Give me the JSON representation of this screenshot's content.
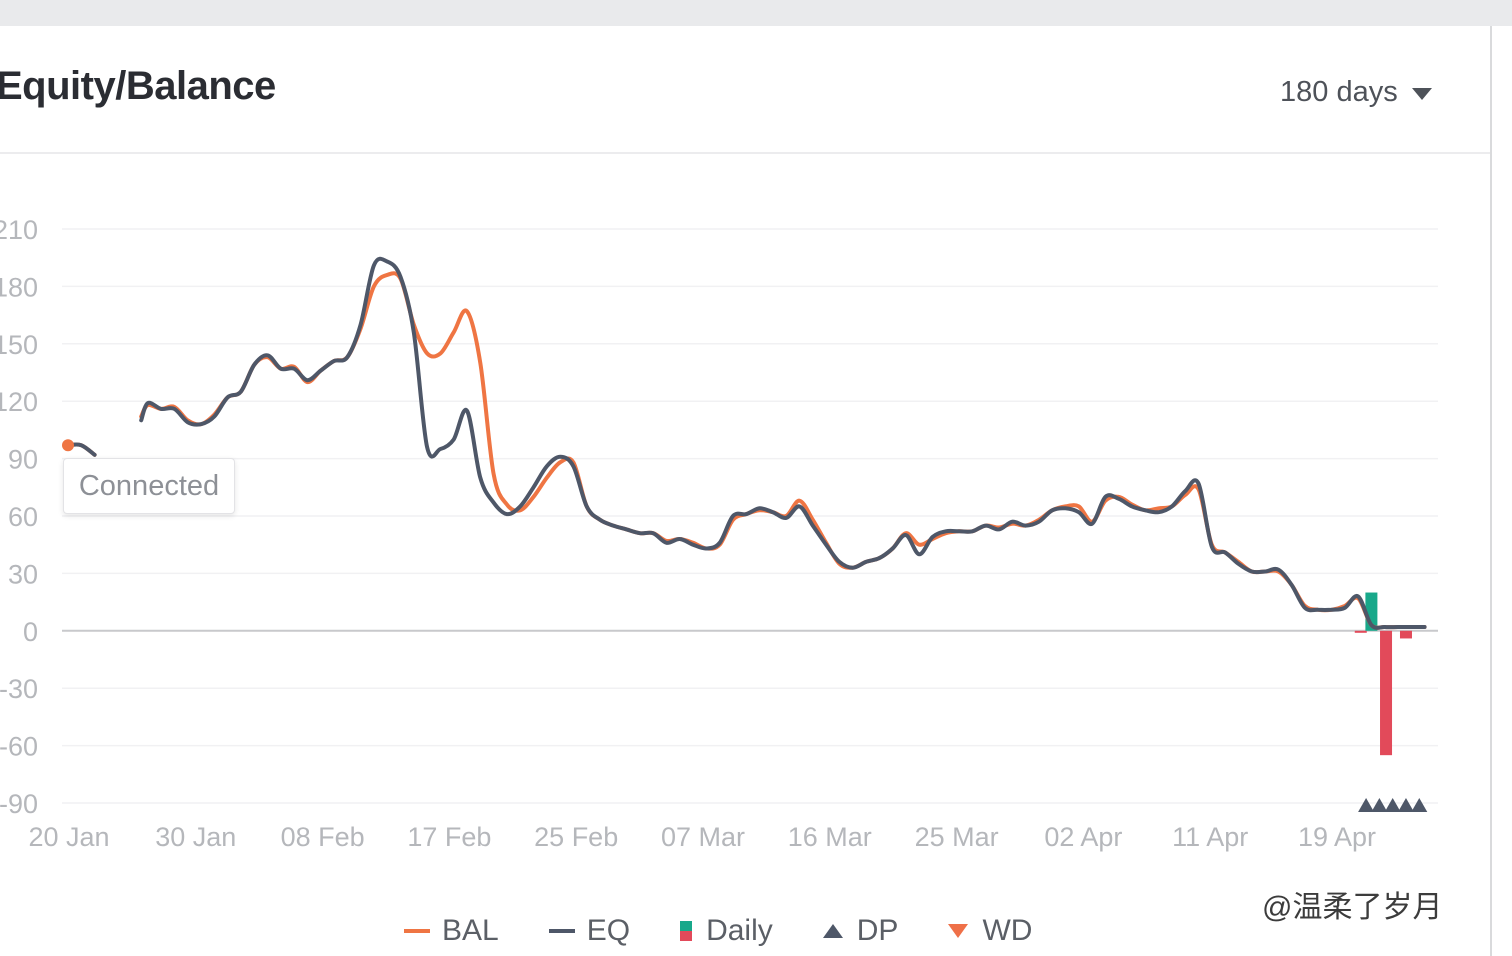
{
  "header": {
    "title": "Equity/Balance",
    "range_label": "180 days"
  },
  "tooltip": "Connected",
  "watermark": "@温柔了岁月",
  "legend": [
    {
      "key": "bal",
      "label": "BAL",
      "color": "#ef7543"
    },
    {
      "key": "eq",
      "label": "EQ",
      "color": "#4e5768"
    },
    {
      "key": "daily",
      "label": "Daily",
      "color_pos": "#18a88a",
      "color_neg": "#e24a5a"
    },
    {
      "key": "dp",
      "label": "DP",
      "color": "#4e5768"
    },
    {
      "key": "wd",
      "label": "WD",
      "color": "#ef7048"
    }
  ],
  "chart_data": {
    "type": "line",
    "title": "Equity/Balance",
    "ylim": [
      -90,
      210
    ],
    "yticks": [
      -90,
      -60,
      -30,
      0,
      30,
      60,
      90,
      120,
      150,
      180,
      210
    ],
    "ytick_labels": [
      "-90",
      "-60",
      "-30",
      "0",
      "30",
      "60",
      "90",
      "120",
      "150",
      "180",
      "210"
    ],
    "xticks": [
      "20 Jan",
      "30 Jan",
      "08 Feb",
      "17 Feb",
      "25 Feb",
      "07 Mar",
      "16 Mar",
      "25 Mar",
      "02 Apr",
      "11 Apr",
      "19 Apr"
    ],
    "grid": true,
    "legend_position": "bottom",
    "series": [
      {
        "name": "BAL",
        "color": "#ef7543",
        "points": [
          [
            0,
            97
          ],
          [
            1,
            97
          ],
          [
            2,
            92
          ],
          [
            3.5,
            null
          ],
          [
            5.2,
            null
          ],
          [
            5.5,
            112
          ],
          [
            6,
            118
          ],
          [
            7,
            116
          ],
          [
            8,
            117
          ],
          [
            9,
            110
          ],
          [
            10,
            108
          ],
          [
            11,
            113
          ],
          [
            12,
            122
          ],
          [
            13,
            125
          ],
          [
            14,
            139
          ],
          [
            15,
            143
          ],
          [
            16,
            137
          ],
          [
            17,
            138
          ],
          [
            18,
            130
          ],
          [
            19,
            136
          ],
          [
            20,
            141
          ],
          [
            21,
            143
          ],
          [
            22,
            158
          ],
          [
            23,
            180
          ],
          [
            24,
            186
          ],
          [
            25,
            184
          ],
          [
            26,
            160
          ],
          [
            27,
            145
          ],
          [
            28,
            145
          ],
          [
            29,
            156
          ],
          [
            30,
            167
          ],
          [
            31,
            140
          ],
          [
            32,
            82
          ],
          [
            33,
            66
          ],
          [
            34,
            63
          ],
          [
            35,
            70
          ],
          [
            36,
            80
          ],
          [
            37,
            88
          ],
          [
            38,
            88
          ],
          [
            39,
            65
          ],
          [
            40,
            58
          ],
          [
            41,
            55
          ],
          [
            42,
            53
          ],
          [
            43,
            51
          ],
          [
            44,
            51
          ],
          [
            45,
            47
          ],
          [
            46,
            48
          ],
          [
            47,
            46
          ],
          [
            48,
            43
          ],
          [
            49,
            45
          ],
          [
            50,
            58
          ],
          [
            51,
            61
          ],
          [
            52,
            63
          ],
          [
            53,
            62
          ],
          [
            54,
            60
          ],
          [
            55,
            68
          ],
          [
            56,
            58
          ],
          [
            57,
            46
          ],
          [
            58,
            35
          ],
          [
            59,
            33
          ],
          [
            60,
            36
          ],
          [
            61,
            38
          ],
          [
            62,
            43
          ],
          [
            63,
            51
          ],
          [
            64,
            45
          ],
          [
            65,
            48
          ],
          [
            66,
            51
          ],
          [
            67,
            52
          ],
          [
            68,
            52
          ],
          [
            69,
            55
          ],
          [
            70,
            54
          ],
          [
            71,
            56
          ],
          [
            72,
            55
          ],
          [
            73,
            58
          ],
          [
            74,
            63
          ],
          [
            75,
            65
          ],
          [
            76,
            65
          ],
          [
            77,
            57
          ],
          [
            78,
            68
          ],
          [
            79,
            70
          ],
          [
            80,
            66
          ],
          [
            81,
            63
          ],
          [
            82,
            64
          ],
          [
            83,
            65
          ],
          [
            84,
            71
          ],
          [
            85,
            74
          ],
          [
            86,
            45
          ],
          [
            87,
            41
          ],
          [
            88,
            36
          ],
          [
            89,
            31
          ],
          [
            90,
            31
          ],
          [
            91,
            31
          ],
          [
            92,
            24
          ],
          [
            93,
            13
          ],
          [
            94,
            11
          ],
          [
            95,
            11
          ],
          [
            96,
            13
          ],
          [
            97,
            17
          ],
          [
            98,
            3
          ],
          [
            99,
            2
          ],
          [
            100,
            2
          ],
          [
            101,
            2
          ],
          [
            102,
            2
          ]
        ]
      },
      {
        "name": "EQ",
        "color": "#4e5768",
        "points": [
          [
            0,
            97
          ],
          [
            1,
            97
          ],
          [
            2,
            92
          ],
          [
            3.5,
            null
          ],
          [
            5.2,
            null
          ],
          [
            5.5,
            110
          ],
          [
            6,
            119
          ],
          [
            7,
            116
          ],
          [
            8,
            116
          ],
          [
            9,
            109
          ],
          [
            10,
            108
          ],
          [
            11,
            112
          ],
          [
            12,
            122
          ],
          [
            13,
            125
          ],
          [
            14,
            139
          ],
          [
            15,
            144
          ],
          [
            16,
            137
          ],
          [
            17,
            137
          ],
          [
            18,
            131
          ],
          [
            19,
            136
          ],
          [
            20,
            141
          ],
          [
            21,
            143
          ],
          [
            22,
            160
          ],
          [
            23,
            191
          ],
          [
            24,
            193
          ],
          [
            25,
            185
          ],
          [
            26,
            156
          ],
          [
            27,
            96
          ],
          [
            28,
            95
          ],
          [
            29,
            100
          ],
          [
            30,
            115
          ],
          [
            31,
            80
          ],
          [
            32,
            67
          ],
          [
            33,
            61
          ],
          [
            34,
            65
          ],
          [
            35,
            75
          ],
          [
            36,
            86
          ],
          [
            37,
            91
          ],
          [
            38,
            86
          ],
          [
            39,
            65
          ],
          [
            40,
            58
          ],
          [
            41,
            55
          ],
          [
            42,
            53
          ],
          [
            43,
            51
          ],
          [
            44,
            51
          ],
          [
            45,
            46
          ],
          [
            46,
            48
          ],
          [
            47,
            45
          ],
          [
            48,
            43
          ],
          [
            49,
            46
          ],
          [
            50,
            60
          ],
          [
            51,
            61
          ],
          [
            52,
            64
          ],
          [
            53,
            62
          ],
          [
            54,
            59
          ],
          [
            55,
            65
          ],
          [
            56,
            55
          ],
          [
            57,
            45
          ],
          [
            58,
            36
          ],
          [
            59,
            33
          ],
          [
            60,
            36
          ],
          [
            61,
            38
          ],
          [
            62,
            43
          ],
          [
            63,
            50
          ],
          [
            64,
            40
          ],
          [
            65,
            49
          ],
          [
            66,
            52
          ],
          [
            67,
            52
          ],
          [
            68,
            52
          ],
          [
            69,
            55
          ],
          [
            70,
            53
          ],
          [
            71,
            57
          ],
          [
            72,
            55
          ],
          [
            73,
            57
          ],
          [
            74,
            63
          ],
          [
            75,
            64
          ],
          [
            76,
            62
          ],
          [
            77,
            56
          ],
          [
            78,
            70
          ],
          [
            79,
            69
          ],
          [
            80,
            65
          ],
          [
            81,
            63
          ],
          [
            82,
            62
          ],
          [
            83,
            65
          ],
          [
            84,
            73
          ],
          [
            85,
            77
          ],
          [
            86,
            44
          ],
          [
            87,
            41
          ],
          [
            88,
            35
          ],
          [
            89,
            31
          ],
          [
            90,
            31
          ],
          [
            91,
            32
          ],
          [
            92,
            24
          ],
          [
            93,
            12
          ],
          [
            94,
            11
          ],
          [
            95,
            11
          ],
          [
            96,
            12
          ],
          [
            97,
            18
          ],
          [
            98,
            3
          ],
          [
            99,
            2
          ],
          [
            100,
            2
          ],
          [
            101,
            2
          ],
          [
            102,
            2
          ]
        ]
      },
      {
        "name": "Daily",
        "type": "bar",
        "points": [
          [
            97.2,
            -1
          ],
          [
            98,
            20
          ],
          [
            99.1,
            -65
          ],
          [
            100.6,
            -4
          ]
        ]
      },
      {
        "name": "DP",
        "type": "marker",
        "points": [
          [
            97.6,
            -90
          ],
          [
            98.6,
            -90
          ],
          [
            99.6,
            -90
          ],
          [
            100.6,
            -90
          ],
          [
            101.6,
            -90
          ]
        ]
      }
    ]
  }
}
